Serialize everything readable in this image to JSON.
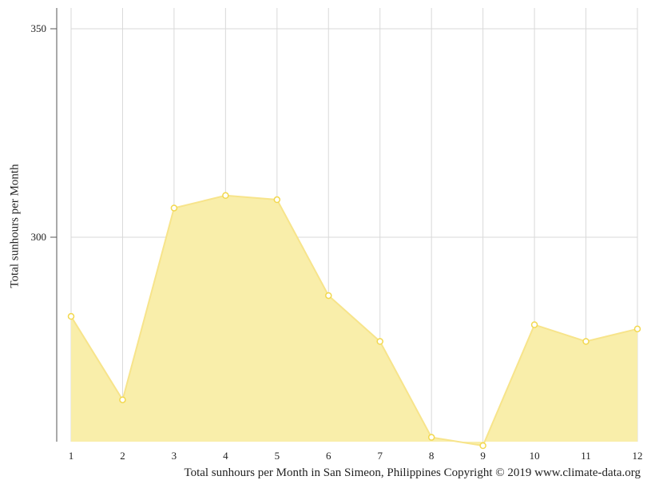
{
  "chart_data": {
    "type": "area",
    "title": "",
    "xlabel": "",
    "ylabel": "Total sunhours per Month",
    "x": [
      1,
      2,
      3,
      4,
      5,
      6,
      7,
      8,
      9,
      10,
      11,
      12
    ],
    "values": [
      281,
      261,
      307,
      310,
      309,
      286,
      275,
      252,
      250,
      279,
      275,
      278
    ],
    "ylim": [
      250,
      353
    ],
    "yticks": [
      300,
      350
    ],
    "grid": true,
    "colors": {
      "fill": "#f9eeaa",
      "stroke": "#f7e48b",
      "marker": "#f2d84f",
      "grid": "#d9d9d9",
      "axis": "#555555"
    }
  },
  "footer": "Total sunhours per Month in San Simeon, Philippines Copyright © 2019 www.climate-data.org"
}
